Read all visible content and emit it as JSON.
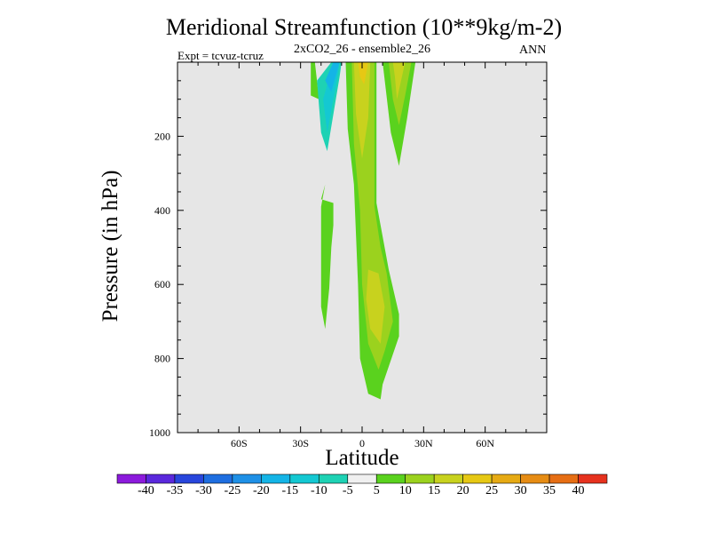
{
  "chart_data": {
    "type": "heatmap",
    "title": "Meridional Streamfunction (10**9kg/m-2)",
    "subtitle": "2xCO2_26 - ensemble2_26",
    "experiment_label": "Expt = tcvuz-tcruz",
    "season_label": "ANN",
    "xlabel": "Latitude",
    "ylabel": "Pressure (in hPa)",
    "xlim": [
      -90,
      90
    ],
    "ylim": [
      1000,
      0
    ],
    "xticks": [
      {
        "value": -60,
        "label": "60S"
      },
      {
        "value": -30,
        "label": "30S"
      },
      {
        "value": 0,
        "label": "0"
      },
      {
        "value": 30,
        "label": "30N"
      },
      {
        "value": 60,
        "label": "60N"
      }
    ],
    "yticks": [
      {
        "value": 200,
        "label": "200"
      },
      {
        "value": 400,
        "label": "400"
      },
      {
        "value": 600,
        "label": "600"
      },
      {
        "value": 800,
        "label": "800"
      },
      {
        "value": 1000,
        "label": "1000"
      }
    ],
    "background_color": "#e6e6e6",
    "colorbar": {
      "levels": [
        -40,
        -35,
        -30,
        -25,
        -20,
        -15,
        -10,
        -5,
        5,
        10,
        15,
        20,
        25,
        30,
        35,
        40
      ],
      "labels": [
        "-40",
        "-35",
        "-30",
        "-25",
        "-20",
        "-15",
        "-10",
        "-5",
        "5",
        "10",
        "15",
        "20",
        "25",
        "30",
        "35",
        "40"
      ],
      "colors": [
        "#8c1adc",
        "#5a28dc",
        "#2846dc",
        "#1e6ee0",
        "#1e90e6",
        "#14b4e6",
        "#14c8d2",
        "#1ed2b4",
        "#f0f0f0",
        "#5ad21e",
        "#9bd21e",
        "#c8d21e",
        "#e6c814",
        "#e6aa14",
        "#e68c14",
        "#e66e14",
        "#e6321e"
      ]
    },
    "regions": [
      {
        "level": 5,
        "color": "#5ad21e",
        "points": [
          [
            -25,
            0
          ],
          [
            -23,
            0
          ],
          [
            -21,
            100
          ],
          [
            -25,
            90
          ]
        ]
      },
      {
        "level": 5,
        "color": "#5ad21e",
        "points": [
          [
            -20,
            370
          ],
          [
            -14,
            380
          ],
          [
            -14,
            440
          ],
          [
            -15,
            500
          ],
          [
            -16,
            610
          ],
          [
            -18,
            720
          ],
          [
            -20,
            660
          ],
          [
            -20,
            390
          ],
          [
            -18,
            330
          ]
        ]
      },
      {
        "level": 5,
        "color": "#5ad21e",
        "points": [
          [
            -8,
            0
          ],
          [
            7,
            0
          ],
          [
            7,
            380
          ],
          [
            10,
            470
          ],
          [
            13,
            560
          ],
          [
            18,
            680
          ],
          [
            18,
            740
          ],
          [
            10,
            870
          ],
          [
            9,
            910
          ],
          [
            3,
            895
          ],
          [
            -1,
            800
          ],
          [
            -2,
            600
          ],
          [
            -4,
            330
          ],
          [
            -7,
            180
          ]
        ]
      },
      {
        "level": 5,
        "color": "#5ad21e",
        "points": [
          [
            10,
            0
          ],
          [
            26,
            0
          ],
          [
            22,
            150
          ],
          [
            18,
            280
          ],
          [
            14,
            190
          ]
        ]
      },
      {
        "level": -5,
        "color": "#1ed2b4",
        "points": [
          [
            -15,
            0
          ],
          [
            -10,
            0
          ],
          [
            -11,
            40
          ],
          [
            -17,
            240
          ],
          [
            -20,
            190
          ],
          [
            -22,
            50
          ]
        ]
      },
      {
        "level": -10,
        "color": "#14c8d2",
        "points": [
          [
            -14,
            0
          ],
          [
            -11,
            0
          ],
          [
            -12,
            40
          ],
          [
            -17,
            190
          ],
          [
            -19,
            100
          ]
        ]
      },
      {
        "level": -15,
        "color": "#14b4e6",
        "points": [
          [
            -14,
            0
          ],
          [
            -11,
            0
          ],
          [
            -12,
            20
          ],
          [
            -15,
            80
          ],
          [
            -18,
            50
          ]
        ]
      },
      {
        "level": 10,
        "color": "#9bd21e",
        "points": [
          [
            -5,
            0
          ],
          [
            6,
            0
          ],
          [
            6,
            390
          ],
          [
            9,
            500
          ],
          [
            12,
            570
          ],
          [
            15,
            700
          ],
          [
            11,
            780
          ],
          [
            8,
            830
          ],
          [
            3,
            760
          ],
          [
            0,
            600
          ],
          [
            -1,
            400
          ],
          [
            -4,
            220
          ]
        ]
      },
      {
        "level": 10,
        "color": "#9bd21e",
        "points": [
          [
            13,
            0
          ],
          [
            24,
            0
          ],
          [
            21,
            90
          ],
          [
            18,
            170
          ],
          [
            15,
            100
          ]
        ]
      },
      {
        "level": 15,
        "color": "#c8d21e",
        "points": [
          [
            -4,
            0
          ],
          [
            4,
            0
          ],
          [
            3,
            150
          ],
          [
            0,
            260
          ],
          [
            -3,
            140
          ]
        ]
      },
      {
        "level": 15,
        "color": "#c8d21e",
        "points": [
          [
            3,
            560
          ],
          [
            8,
            570
          ],
          [
            11,
            660
          ],
          [
            9,
            760
          ],
          [
            4,
            720
          ],
          [
            2,
            640
          ]
        ]
      },
      {
        "level": 15,
        "color": "#c8d21e",
        "points": [
          [
            15,
            0
          ],
          [
            21,
            0
          ],
          [
            19,
            50
          ],
          [
            17,
            100
          ],
          [
            16,
            40
          ]
        ]
      },
      {
        "level": 20,
        "color": "#e6c814",
        "points": [
          [
            -2,
            0
          ],
          [
            3,
            0
          ],
          [
            1,
            60
          ],
          [
            -1,
            40
          ]
        ]
      }
    ]
  }
}
